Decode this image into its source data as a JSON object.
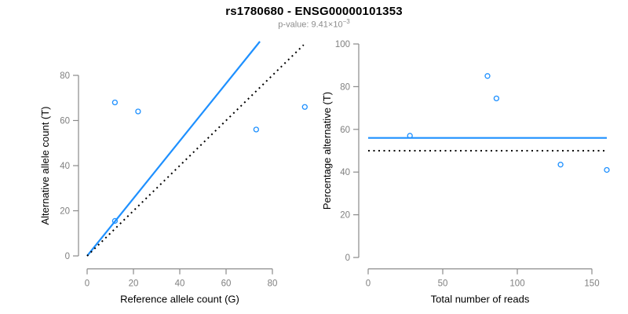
{
  "header": {
    "title": "rs1780680 - ENSG00000101353",
    "pvalue_text": "p-value: 9.41×10",
    "pvalue_exponent": "−3"
  },
  "colors": {
    "accent_blue": "#1E90FF",
    "dotted_black": "#000000",
    "axis_gray": "#8a8a8a",
    "tick_label_gray": "#7f7f7f",
    "axis_title_black": "#000000",
    "subtitle_gray": "#8c8c8c"
  },
  "chart_data": [
    {
      "type": "scatter",
      "panel": "left",
      "xlabel": "Reference allele count (G)",
      "ylabel": "Alternative allele count (T)",
      "xticks": [
        0,
        20,
        40,
        60,
        80
      ],
      "yticks": [
        0,
        20,
        40,
        60,
        80
      ],
      "xlim": [
        0,
        96
      ],
      "ylim": [
        0,
        95
      ],
      "grid": false,
      "legend": "none",
      "marker": "open-circle",
      "points": [
        [
          12,
          15.5
        ],
        [
          12,
          68
        ],
        [
          22,
          64
        ],
        [
          73,
          56
        ],
        [
          94,
          66
        ]
      ],
      "lines": [
        {
          "style": "solid",
          "color": "#1E90FF",
          "x1": 0,
          "y1": 0,
          "x2": 74.6,
          "y2": 95
        },
        {
          "style": "dotted",
          "color": "#000000",
          "x1": 0,
          "y1": 0,
          "x2": 93.5,
          "y2": 93.5
        }
      ]
    },
    {
      "type": "scatter",
      "panel": "right",
      "xlabel": "Total number of reads",
      "ylabel": "Percentage alternative (T)",
      "xticks": [
        0,
        50,
        100,
        150
      ],
      "yticks": [
        0,
        20,
        40,
        60,
        80,
        100
      ],
      "xlim": [
        0,
        160
      ],
      "ylim": [
        0,
        100
      ],
      "grid": false,
      "legend": "none",
      "marker": "open-circle",
      "points": [
        [
          28,
          57
        ],
        [
          80,
          85
        ],
        [
          86,
          74.5
        ],
        [
          129,
          43.5
        ],
        [
          160,
          41
        ]
      ],
      "lines": [
        {
          "style": "solid",
          "color": "#1E90FF",
          "x1": 0,
          "y1": 56,
          "x2": 160,
          "y2": 56
        },
        {
          "style": "dotted",
          "color": "#000000",
          "x1": 0,
          "y1": 50,
          "x2": 160,
          "y2": 50
        }
      ]
    }
  ]
}
